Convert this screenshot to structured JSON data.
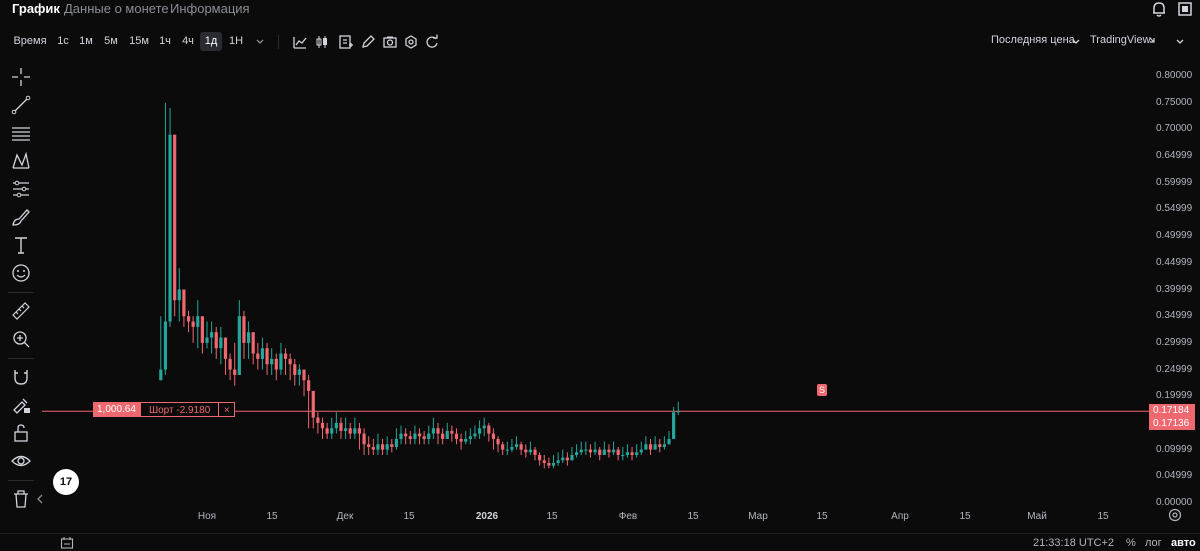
{
  "tabs": [
    {
      "label": "График",
      "active": true
    },
    {
      "label": "Данные о монете",
      "active": false
    },
    {
      "label": "Информация",
      "active": false
    }
  ],
  "toolbar": {
    "time_label": "Время",
    "intervals": [
      {
        "label": "1с",
        "active": false
      },
      {
        "label": "1м",
        "active": false
      },
      {
        "label": "5м",
        "active": false
      },
      {
        "label": "15м",
        "active": false
      },
      {
        "label": "1ч",
        "active": false
      },
      {
        "label": "4ч",
        "active": false
      },
      {
        "label": "1д",
        "active": true
      },
      {
        "label": "1Н",
        "active": false
      }
    ],
    "price_type": "Последняя цена",
    "chart_mode": "TradingView"
  },
  "position": {
    "quantity": "1,000.64",
    "side": "Шорт -2.9180",
    "close_glyph": "×",
    "marker": "S"
  },
  "price_tags": {
    "last": "0.17184",
    "entry": "0.17136"
  },
  "logo_text": "17",
  "bottom": {
    "time": "21:33:18 UTC+2",
    "percent": "%",
    "log": "лог",
    "auto": "авто"
  },
  "colors": {
    "up": "#26a69a",
    "down": "#f0686f",
    "background": "#0b0b0c",
    "position_line": "#f0686f"
  },
  "chart_data": {
    "type": "candlestick",
    "title": "",
    "xlabel": "",
    "ylabel": "",
    "ylim": [
      0,
      0.8
    ],
    "y_ticks": [
      "0.00000",
      "0.04999",
      "0.09999",
      "0.14999",
      "0.19999",
      "0.24999",
      "0.29999",
      "0.34999",
      "0.39999",
      "0.44999",
      "0.49999",
      "0.54999",
      "0.59999",
      "0.64999",
      "0.70000",
      "0.75000",
      "0.80000"
    ],
    "x_ticks": [
      "Ноя",
      "15",
      "Дек",
      "15",
      "2026",
      "15",
      "Фев",
      "15",
      "Мар",
      "15",
      "Апр",
      "15",
      "Май",
      "15"
    ],
    "x_ticks_bold": [
      "2026"
    ],
    "start_date": "2025-10-22",
    "close": [
      0.25,
      0.34,
      0.69,
      0.38,
      0.4,
      0.35,
      0.34,
      0.33,
      0.35,
      0.3,
      0.31,
      0.32,
      0.29,
      0.31,
      0.27,
      0.25,
      0.24,
      0.35,
      0.3,
      0.32,
      0.28,
      0.27,
      0.29,
      0.26,
      0.27,
      0.25,
      0.28,
      0.27,
      0.26,
      0.24,
      0.25,
      0.23,
      0.21,
      0.16,
      0.15,
      0.14,
      0.13,
      0.14,
      0.15,
      0.135,
      0.14,
      0.13,
      0.14,
      0.13,
      0.11,
      0.105,
      0.1,
      0.11,
      0.1,
      0.11,
      0.105,
      0.12,
      0.13,
      0.125,
      0.12,
      0.13,
      0.125,
      0.12,
      0.13,
      0.14,
      0.13,
      0.12,
      0.135,
      0.13,
      0.12,
      0.115,
      0.12,
      0.125,
      0.13,
      0.14,
      0.145,
      0.13,
      0.12,
      0.11,
      0.1,
      0.1,
      0.105,
      0.11,
      0.1,
      0.095,
      0.1,
      0.09,
      0.08,
      0.075,
      0.07,
      0.075,
      0.08,
      0.085,
      0.08,
      0.09,
      0.095,
      0.1,
      0.1,
      0.095,
      0.1,
      0.09,
      0.1,
      0.095,
      0.1,
      0.09,
      0.09,
      0.095,
      0.09,
      0.095,
      0.1,
      0.11,
      0.1,
      0.11,
      0.105,
      0.11,
      0.12,
      0.17,
      0.172
    ],
    "high": [
      0.35,
      0.75,
      0.74,
      0.42,
      0.44,
      0.37,
      0.36,
      0.35,
      0.38,
      0.33,
      0.34,
      0.34,
      0.33,
      0.33,
      0.31,
      0.28,
      0.3,
      0.38,
      0.36,
      0.34,
      0.32,
      0.3,
      0.31,
      0.3,
      0.29,
      0.28,
      0.3,
      0.29,
      0.28,
      0.27,
      0.26,
      0.25,
      0.24,
      0.21,
      0.17,
      0.16,
      0.15,
      0.16,
      0.17,
      0.16,
      0.16,
      0.15,
      0.16,
      0.15,
      0.14,
      0.125,
      0.12,
      0.13,
      0.12,
      0.125,
      0.12,
      0.14,
      0.145,
      0.14,
      0.135,
      0.145,
      0.14,
      0.135,
      0.145,
      0.16,
      0.15,
      0.14,
      0.15,
      0.145,
      0.14,
      0.13,
      0.135,
      0.14,
      0.145,
      0.155,
      0.16,
      0.15,
      0.14,
      0.125,
      0.115,
      0.115,
      0.12,
      0.125,
      0.115,
      0.11,
      0.115,
      0.105,
      0.095,
      0.09,
      0.085,
      0.09,
      0.095,
      0.1,
      0.095,
      0.105,
      0.11,
      0.115,
      0.115,
      0.11,
      0.115,
      0.105,
      0.115,
      0.11,
      0.115,
      0.105,
      0.105,
      0.11,
      0.105,
      0.11,
      0.115,
      0.125,
      0.12,
      0.125,
      0.12,
      0.125,
      0.135,
      0.18,
      0.19
    ],
    "low": [
      0.23,
      0.24,
      0.33,
      0.35,
      0.34,
      0.33,
      0.32,
      0.3,
      0.29,
      0.28,
      0.29,
      0.28,
      0.27,
      0.26,
      0.24,
      0.23,
      0.22,
      0.28,
      0.27,
      0.27,
      0.26,
      0.25,
      0.25,
      0.24,
      0.24,
      0.23,
      0.24,
      0.24,
      0.23,
      0.22,
      0.22,
      0.2,
      0.14,
      0.14,
      0.13,
      0.12,
      0.12,
      0.12,
      0.13,
      0.12,
      0.12,
      0.12,
      0.12,
      0.1,
      0.09,
      0.09,
      0.09,
      0.09,
      0.09,
      0.09,
      0.095,
      0.1,
      0.11,
      0.11,
      0.11,
      0.11,
      0.11,
      0.11,
      0.11,
      0.12,
      0.11,
      0.11,
      0.12,
      0.115,
      0.11,
      0.1,
      0.11,
      0.11,
      0.12,
      0.12,
      0.125,
      0.115,
      0.1,
      0.095,
      0.09,
      0.09,
      0.095,
      0.1,
      0.09,
      0.085,
      0.09,
      0.08,
      0.07,
      0.065,
      0.065,
      0.065,
      0.07,
      0.075,
      0.07,
      0.08,
      0.085,
      0.09,
      0.09,
      0.085,
      0.09,
      0.08,
      0.09,
      0.085,
      0.09,
      0.08,
      0.08,
      0.085,
      0.08,
      0.085,
      0.09,
      0.1,
      0.09,
      0.1,
      0.095,
      0.1,
      0.11,
      0.12,
      0.165
    ],
    "position_price": 0.17184,
    "grid": false
  }
}
